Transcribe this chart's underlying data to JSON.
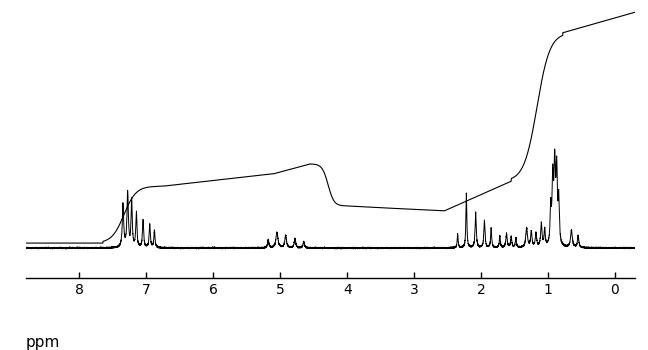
{
  "xlim": [
    8.8,
    -0.3
  ],
  "ylim": [
    -0.08,
    1.08
  ],
  "xticks": [
    8,
    7,
    6,
    5,
    4,
    3,
    2,
    1,
    0
  ],
  "xlabel": "ppm",
  "background_color": "#ffffff",
  "line_color": "#000000",
  "figsize": [
    6.48,
    3.5
  ],
  "dpi": 100,
  "spectrum_baseline": 0.12,
  "spectrum_scale": 0.4
}
